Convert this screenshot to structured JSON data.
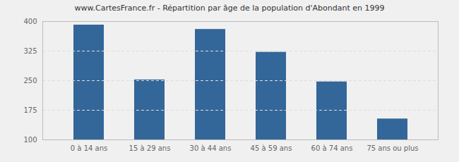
{
  "chart_data": {
    "type": "bar",
    "title": "www.CartesFrance.fr - Répartition par âge de la population d'Abondant en 1999",
    "categories": [
      "0 à 14 ans",
      "15 à 29 ans",
      "30 à 44 ans",
      "45 à 59 ans",
      "60 à 74 ans",
      "75 ans ou plus"
    ],
    "values": [
      391,
      252,
      380,
      322,
      247,
      153
    ],
    "color": "#336699",
    "ylim": [
      100,
      400
    ],
    "yticks": [
      100,
      175,
      250,
      325,
      400
    ],
    "grid": true
  }
}
